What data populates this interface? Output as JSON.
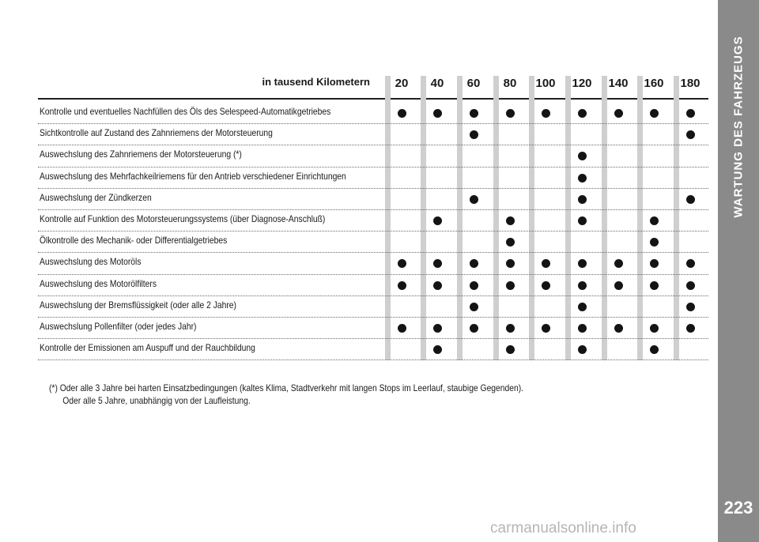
{
  "section_title": "WARTUNG DES FAHRZEUGS",
  "page_number": "223",
  "table": {
    "unit_label": "in tausend Kilometern",
    "km_columns": [
      "20",
      "40",
      "60",
      "80",
      "100",
      "120",
      "140",
      "160",
      "180"
    ],
    "rows": [
      {
        "label": "Kontrolle und eventuelles Nachfüllen des Öls des Selespeed-Automatikgetriebes",
        "marks": [
          "20",
          "40",
          "60",
          "80",
          "100",
          "120",
          "140",
          "160",
          "180"
        ]
      },
      {
        "label": "Sichtkontrolle auf Zustand des Zahnriemens der Motorsteuerung",
        "marks": [
          "60",
          "180"
        ]
      },
      {
        "label": "Auswechslung des Zahnriemens der Motorsteuerung (*)",
        "marks": [
          "120"
        ]
      },
      {
        "label": "Auswechslung des Mehrfachkeilriemens für den Antrieb verschiedener Einrichtungen",
        "marks": [
          "120"
        ]
      },
      {
        "label": "Auswechslung der Zündkerzen",
        "marks": [
          "60",
          "120",
          "180"
        ]
      },
      {
        "label": "Kontrolle auf Funktion des Motorsteuerungssystems (über Diagnose-Anschluß)",
        "marks": [
          "40",
          "80",
          "120",
          "160"
        ]
      },
      {
        "label": "Ölkontrolle des Mechanik- oder Differentialgetriebes",
        "marks": [
          "80",
          "160"
        ]
      },
      {
        "label": "Auswechslung des Motoröls",
        "marks": [
          "20",
          "40",
          "60",
          "80",
          "100",
          "120",
          "140",
          "160",
          "180"
        ]
      },
      {
        "label": "Auswechslung des Motorölfilters",
        "marks": [
          "20",
          "40",
          "60",
          "80",
          "100",
          "120",
          "140",
          "160",
          "180"
        ]
      },
      {
        "label": "Auswechslung der Bremsflüssigkeit (oder alle 2 Jahre)",
        "marks": [
          "60",
          "120",
          "180"
        ]
      },
      {
        "label": "Auswechslung Pollenfilter (oder jedes Jahr)",
        "marks": [
          "20",
          "40",
          "60",
          "80",
          "100",
          "120",
          "140",
          "160",
          "180"
        ]
      },
      {
        "label": "Kontrolle der Emissionen am Auspuff und der Rauchbildung",
        "marks": [
          "40",
          "80",
          "120",
          "160"
        ]
      }
    ]
  },
  "footnote": {
    "line1": "(*) Oder alle 3 Jahre bei harten Einsatzbedingungen (kaltes Klima, Stadtverkehr mit langen Stops im Leerlauf, staubige Gegenden).",
    "line2": "Oder alle 5 Jahre, unabhängig von der Laufleistung."
  },
  "watermark": "carmanualsonline.info"
}
